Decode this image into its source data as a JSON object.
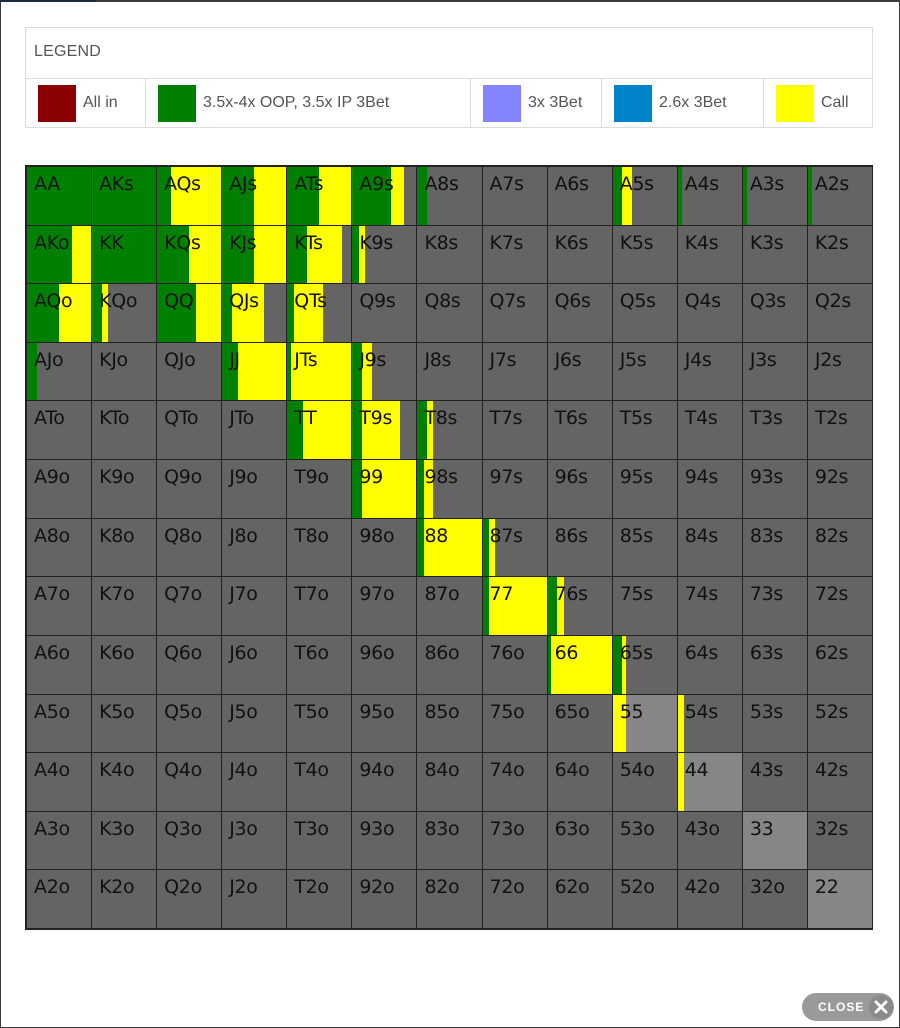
{
  "legend": {
    "title": "LEGEND",
    "items": [
      {
        "label": "All in",
        "color": "#8b0000"
      },
      {
        "label": "3.5x-4x OOP, 3.5x IP 3Bet",
        "color": "#008000"
      },
      {
        "label": "3x 3Bet",
        "color": "#8484ff"
      },
      {
        "label": "2.6x 3Bet",
        "color": "#0083c9"
      },
      {
        "label": "Call",
        "color": "#ffff00"
      }
    ]
  },
  "colors": {
    "fold": "#646464",
    "pair_fold": "#868686",
    "raise": "#008000",
    "call": "#ffff00"
  },
  "hands": [
    [
      "AA",
      "AKs",
      "AQs",
      "AJs",
      "ATs",
      "A9s",
      "A8s",
      "A7s",
      "A6s",
      "A5s",
      "A4s",
      "A3s",
      "A2s"
    ],
    [
      "AKo",
      "KK",
      "KQs",
      "KJs",
      "KTs",
      "K9s",
      "K8s",
      "K7s",
      "K6s",
      "K5s",
      "K4s",
      "K3s",
      "K2s"
    ],
    [
      "AQo",
      "KQo",
      "QQ",
      "QJs",
      "QTs",
      "Q9s",
      "Q8s",
      "Q7s",
      "Q6s",
      "Q5s",
      "Q4s",
      "Q3s",
      "Q2s"
    ],
    [
      "AJo",
      "KJo",
      "QJo",
      "JJ",
      "JTs",
      "J9s",
      "J8s",
      "J7s",
      "J6s",
      "J5s",
      "J4s",
      "J3s",
      "J2s"
    ],
    [
      "ATo",
      "KTo",
      "QTo",
      "JTo",
      "TT",
      "T9s",
      "T8s",
      "T7s",
      "T6s",
      "T5s",
      "T4s",
      "T3s",
      "T2s"
    ],
    [
      "A9o",
      "K9o",
      "Q9o",
      "J9o",
      "T9o",
      "99",
      "98s",
      "97s",
      "96s",
      "95s",
      "94s",
      "93s",
      "92s"
    ],
    [
      "A8o",
      "K8o",
      "Q8o",
      "J8o",
      "T8o",
      "98o",
      "88",
      "87s",
      "86s",
      "85s",
      "84s",
      "83s",
      "82s"
    ],
    [
      "A7o",
      "K7o",
      "Q7o",
      "J7o",
      "T7o",
      "97o",
      "87o",
      "77",
      "76s",
      "75s",
      "74s",
      "73s",
      "72s"
    ],
    [
      "A6o",
      "K6o",
      "Q6o",
      "J6o",
      "T6o",
      "96o",
      "86o",
      "76o",
      "66",
      "65s",
      "64s",
      "63s",
      "62s"
    ],
    [
      "A5o",
      "K5o",
      "Q5o",
      "J5o",
      "T5o",
      "95o",
      "85o",
      "75o",
      "65o",
      "55",
      "54s",
      "53s",
      "52s"
    ],
    [
      "A4o",
      "K4o",
      "Q4o",
      "J4o",
      "T4o",
      "94o",
      "84o",
      "74o",
      "64o",
      "54o",
      "44",
      "43s",
      "42s"
    ],
    [
      "A3o",
      "K3o",
      "Q3o",
      "J3o",
      "T3o",
      "93o",
      "83o",
      "73o",
      "63o",
      "53o",
      "43o",
      "33",
      "32s"
    ],
    [
      "A2o",
      "K2o",
      "Q2o",
      "J2o",
      "T2o",
      "92o",
      "82o",
      "72o",
      "62o",
      "52o",
      "42o",
      "32o",
      "22"
    ]
  ],
  "frequencies": {
    "AA": {
      "raise": 1.0,
      "call": 0.0
    },
    "AKs": {
      "raise": 1.0,
      "call": 0.0
    },
    "AQs": {
      "raise": 0.22,
      "call": 0.78
    },
    "AJs": {
      "raise": 0.5,
      "call": 0.5
    },
    "ATs": {
      "raise": 0.5,
      "call": 0.5
    },
    "A9s": {
      "raise": 0.6,
      "call": 0.2
    },
    "A8s": {
      "raise": 0.15,
      "call": 0.0
    },
    "A5s": {
      "raise": 0.15,
      "call": 0.15
    },
    "A4s": {
      "raise": 0.06,
      "call": 0.0
    },
    "A3s": {
      "raise": 0.06,
      "call": 0.0
    },
    "A2s": {
      "raise": 0.06,
      "call": 0.0
    },
    "AKo": {
      "raise": 0.7,
      "call": 0.3
    },
    "KK": {
      "raise": 1.0,
      "call": 0.0
    },
    "KQs": {
      "raise": 0.5,
      "call": 0.5
    },
    "KJs": {
      "raise": 0.5,
      "call": 0.5
    },
    "KTs": {
      "raise": 0.3,
      "call": 0.55
    },
    "K9s": {
      "raise": 0.1,
      "call": 0.1
    },
    "AQo": {
      "raise": 0.5,
      "call": 0.5
    },
    "KQo": {
      "raise": 0.15,
      "call": 0.1
    },
    "QQ": {
      "raise": 0.6,
      "call": 0.4
    },
    "QJs": {
      "raise": 0.15,
      "call": 0.5
    },
    "QTs": {
      "raise": 0.1,
      "call": 0.45
    },
    "AJo": {
      "raise": 0.15,
      "call": 0.0
    },
    "JJ": {
      "raise": 0.25,
      "call": 0.75
    },
    "JTs": {
      "raise": 0.05,
      "call": 0.95
    },
    "J9s": {
      "raise": 0.15,
      "call": 0.15
    },
    "TT": {
      "raise": 0.25,
      "call": 0.75
    },
    "T9s": {
      "raise": 0.15,
      "call": 0.6
    },
    "T8s": {
      "raise": 0.15,
      "call": 0.1
    },
    "99": {
      "raise": 0.15,
      "call": 0.85
    },
    "98s": {
      "raise": 0.1,
      "call": 0.15
    },
    "88": {
      "raise": 0.1,
      "call": 0.9
    },
    "87s": {
      "raise": 0.1,
      "call": 0.1
    },
    "77": {
      "raise": 0.1,
      "call": 0.9
    },
    "76s": {
      "raise": 0.15,
      "call": 0.1
    },
    "66": {
      "raise": 0.05,
      "call": 0.95
    },
    "65s": {
      "raise": 0.15,
      "call": 0.05
    },
    "55": {
      "raise": 0.0,
      "call": 0.2
    },
    "54s": {
      "raise": 0.0,
      "call": 0.1
    },
    "44": {
      "raise": 0.0,
      "call": 0.1
    }
  },
  "close_button": {
    "label": "CLOSE",
    "icon": "close-x-icon"
  }
}
